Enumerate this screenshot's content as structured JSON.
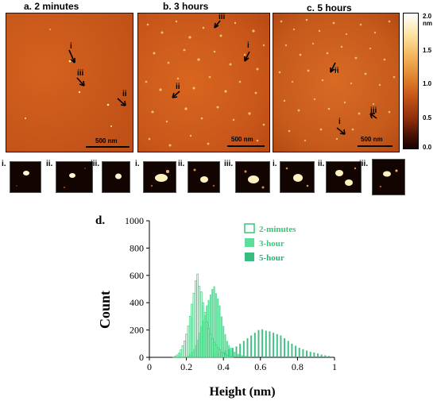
{
  "panels": [
    {
      "title": "a. 2 minutes",
      "scale_bar": "500 nm",
      "markers": [
        "i",
        "iii",
        "ii"
      ]
    },
    {
      "title": "b. 3 hours",
      "scale_bar": "500 nm",
      "markers": [
        "iii",
        "i",
        "ii"
      ]
    },
    {
      "title": "c. 5 hours",
      "scale_bar": "500 nm",
      "markers": [
        "ii",
        "iii",
        "i"
      ]
    }
  ],
  "colorbar": {
    "labels": [
      "2.0 nm",
      "1.5",
      "1.0",
      "0.5",
      "0.0"
    ]
  },
  "insets": {
    "labels": [
      "i.",
      "ii.",
      "iii.",
      "i.",
      "ii.",
      "iii.",
      "i.",
      "ii.",
      "iii."
    ]
  },
  "chart_data": {
    "panel_label": "d.",
    "type": "bar",
    "xlabel": "Height (nm)",
    "ylabel": "Count",
    "xlim": [
      0,
      1
    ],
    "ylim": [
      0,
      1000
    ],
    "xticks": [
      "0",
      "0.2",
      "0.4",
      "0.6",
      "0.8",
      "1"
    ],
    "yticks": [
      "0",
      "200",
      "400",
      "600",
      "800",
      "1000"
    ],
    "legend_position": "top-right",
    "bin_width": 0.01,
    "series": [
      {
        "name": "2-minutes",
        "color": "#2ecc71",
        "style": "outline",
        "x": [
          0.13,
          0.14,
          0.15,
          0.16,
          0.17,
          0.18,
          0.19,
          0.2,
          0.21,
          0.22,
          0.23,
          0.24,
          0.25,
          0.26,
          0.27,
          0.28,
          0.29,
          0.3,
          0.31,
          0.32,
          0.33,
          0.34,
          0.35,
          0.36,
          0.37,
          0.38,
          0.39,
          0.4,
          0.41,
          0.42,
          0.43,
          0.44,
          0.45
        ],
        "values": [
          3,
          8,
          18,
          30,
          55,
          85,
          120,
          170,
          230,
          300,
          390,
          470,
          560,
          610,
          520,
          480,
          400,
          330,
          260,
          210,
          170,
          140,
          110,
          90,
          70,
          55,
          40,
          30,
          20,
          15,
          10,
          6,
          3
        ]
      },
      {
        "name": "3-hour",
        "color": "#27d37a",
        "style": "filled-light",
        "x": [
          0.2,
          0.21,
          0.22,
          0.23,
          0.24,
          0.25,
          0.26,
          0.27,
          0.28,
          0.29,
          0.3,
          0.31,
          0.32,
          0.33,
          0.34,
          0.35,
          0.36,
          0.37,
          0.38,
          0.39,
          0.4,
          0.41,
          0.42,
          0.43,
          0.44,
          0.45,
          0.46,
          0.47,
          0.48,
          0.49,
          0.5,
          0.51,
          0.52,
          0.53,
          0.54,
          0.55
        ],
        "values": [
          5,
          12,
          25,
          40,
          60,
          90,
          130,
          180,
          230,
          270,
          310,
          380,
          420,
          460,
          500,
          520,
          470,
          430,
          380,
          300,
          230,
          170,
          120,
          90,
          70,
          55,
          40,
          30,
          25,
          20,
          15,
          12,
          10,
          8,
          6,
          4
        ]
      },
      {
        "name": "5-hour",
        "color": "#22b573",
        "style": "filled",
        "x": [
          0.35,
          0.37,
          0.39,
          0.41,
          0.43,
          0.45,
          0.47,
          0.49,
          0.51,
          0.53,
          0.55,
          0.57,
          0.59,
          0.61,
          0.63,
          0.65,
          0.67,
          0.69,
          0.71,
          0.73,
          0.75,
          0.77,
          0.79,
          0.81,
          0.83,
          0.85,
          0.87,
          0.89,
          0.91,
          0.93,
          0.95,
          0.97,
          0.99
        ],
        "values": [
          20,
          30,
          40,
          50,
          60,
          70,
          80,
          100,
          120,
          140,
          160,
          180,
          200,
          205,
          195,
          190,
          180,
          170,
          160,
          140,
          120,
          100,
          85,
          70,
          60,
          50,
          40,
          35,
          28,
          20,
          15,
          10,
          6
        ]
      }
    ]
  }
}
